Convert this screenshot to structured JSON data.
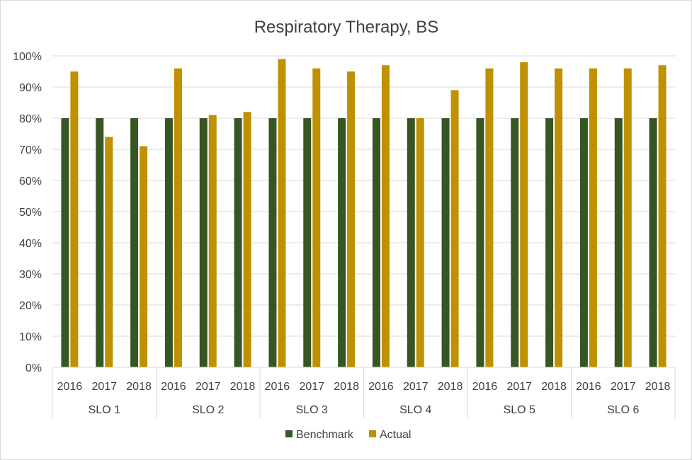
{
  "chart_data": {
    "type": "bar",
    "title": "Respiratory Therapy, BS",
    "xlabel": "",
    "ylabel": "",
    "ylim": [
      0,
      100
    ],
    "yticks": [
      "0%",
      "10%",
      "20%",
      "30%",
      "40%",
      "50%",
      "60%",
      "70%",
      "80%",
      "90%",
      "100%"
    ],
    "groups": [
      "SLO 1",
      "SLO 2",
      "SLO 3",
      "SLO 4",
      "SLO 5",
      "SLO 6"
    ],
    "years": [
      "2016",
      "2017",
      "2018"
    ],
    "categories": [
      "SLO 1 2016",
      "SLO 1 2017",
      "SLO 1 2018",
      "SLO 2 2016",
      "SLO 2 2017",
      "SLO 2 2018",
      "SLO 3 2016",
      "SLO 3 2017",
      "SLO 3 2018",
      "SLO 4 2016",
      "SLO 4 2017",
      "SLO 4 2018",
      "SLO 5 2016",
      "SLO 5 2017",
      "SLO 5 2018",
      "SLO 6 2016",
      "SLO 6 2017",
      "SLO 6 2018"
    ],
    "series": [
      {
        "name": "Benchmark",
        "color": "#375623",
        "values": [
          80,
          80,
          80,
          80,
          80,
          80,
          80,
          80,
          80,
          80,
          80,
          80,
          80,
          80,
          80,
          80,
          80,
          80
        ]
      },
      {
        "name": "Actual",
        "color": "#bf9000",
        "values": [
          95,
          74,
          71,
          96,
          81,
          82,
          99,
          96,
          95,
          97,
          80,
          89,
          96,
          98,
          96,
          96,
          96,
          97
        ]
      }
    ],
    "grid": true,
    "legend": "bottom"
  }
}
